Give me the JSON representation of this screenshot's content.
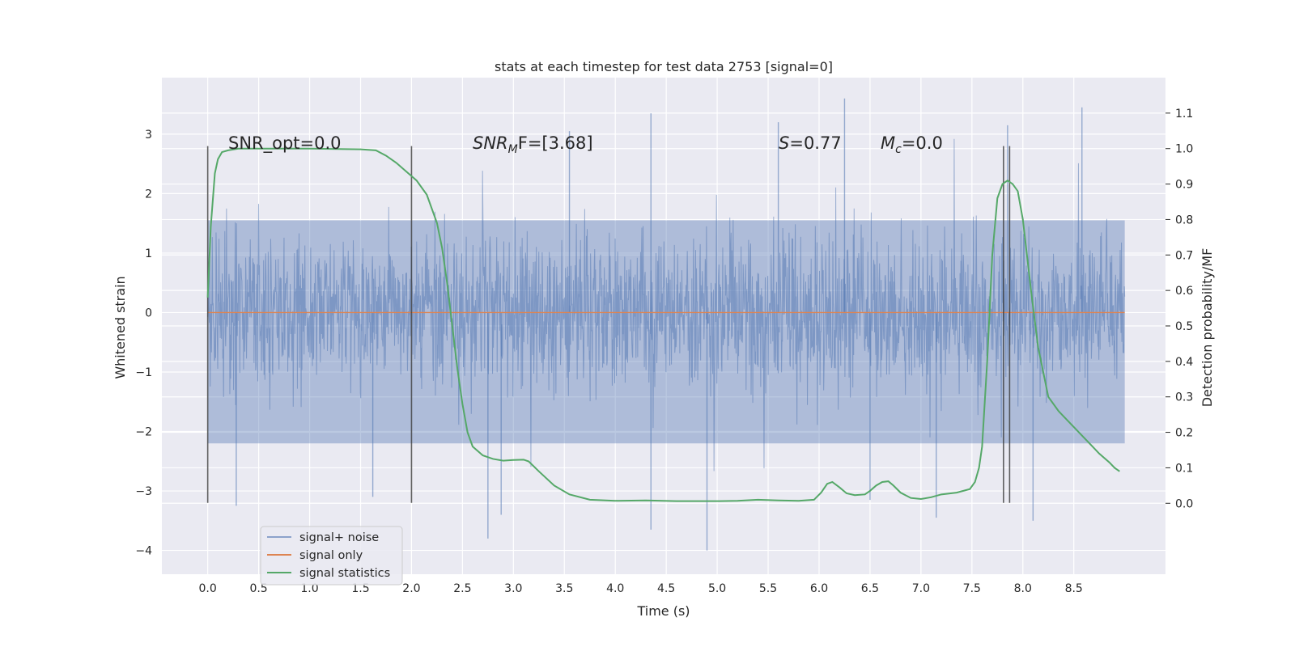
{
  "chart_data": {
    "type": "line",
    "title": "stats at each timestep for test data 2753 [signal=0]",
    "xlabel": "Time (s)",
    "ylabel_left": "Whitened strain",
    "ylabel_right": "Detection probability/MF",
    "xlim": [
      -0.45,
      9.4
    ],
    "ylim_left": [
      -4.4,
      3.95
    ],
    "ylim_right": [
      -0.2,
      1.2
    ],
    "x_ticks": [
      "0.0",
      "0.5",
      "1.0",
      "1.5",
      "2.0",
      "2.5",
      "3.0",
      "3.5",
      "4.0",
      "4.5",
      "5.0",
      "5.5",
      "6.0",
      "6.5",
      "7.0",
      "7.5",
      "8.0",
      "8.5"
    ],
    "y_ticks_left": [
      "3",
      "2",
      "1",
      "0",
      "−1",
      "−2",
      "−3",
      "−4"
    ],
    "y_ticks_right": [
      "1.1",
      "1.0",
      "0.9",
      "0.8",
      "0.7",
      "0.6",
      "0.5",
      "0.4",
      "0.3",
      "0.2",
      "0.1",
      "0.0"
    ],
    "grid": true,
    "annotations": {
      "snr_opt": "SNR_opt=0.0",
      "snr_mf_base": "SNR",
      "snr_mf_sub": "M",
      "snr_mf_rest": "F=[3.68]",
      "s_base": "S",
      "s_rest": "=0.77",
      "mc_base": "M",
      "mc_sub": "c",
      "mc_rest": "=0.0"
    },
    "vertical_lines": [
      {
        "x": 0.0,
        "ymin": -3.2,
        "ymax": 2.8
      },
      {
        "x": 2.0,
        "ymin": -3.2,
        "ymax": 2.8
      },
      {
        "x": 7.81,
        "ymin": -3.2,
        "ymax": 2.8
      },
      {
        "x": 7.87,
        "ymin": -3.2,
        "ymax": 2.8
      }
    ],
    "series": [
      {
        "name": "signal+ noise",
        "color": "#4c72b0",
        "kind": "noise",
        "x_range": [
          0.0,
          9.0
        ],
        "core_range": [
          -2.2,
          1.55
        ],
        "extremes": [
          {
            "x": 0.28,
            "y": -3.25
          },
          {
            "x": 2.75,
            "y": -3.8
          },
          {
            "x": 2.88,
            "y": -3.4
          },
          {
            "x": 4.35,
            "y": 3.35
          },
          {
            "x": 4.35,
            "y": -3.65
          },
          {
            "x": 4.9,
            "y": -4.0
          },
          {
            "x": 5.6,
            "y": 3.2
          },
          {
            "x": 6.25,
            "y": 3.6
          },
          {
            "x": 7.15,
            "y": -3.45
          },
          {
            "x": 8.1,
            "y": -3.5
          },
          {
            "x": 8.58,
            "y": 3.45
          },
          {
            "x": 7.85,
            "y": 3.15
          },
          {
            "x": 3.55,
            "y": 3.05
          },
          {
            "x": 1.62,
            "y": -3.1
          },
          {
            "x": 6.5,
            "y": -3.15
          }
        ]
      },
      {
        "name": "signal only",
        "color": "#dd8452",
        "x": [
          0.0,
          9.0
        ],
        "y": [
          0.0,
          0.0
        ]
      },
      {
        "name": "signal statistics",
        "color": "#55a868",
        "axis": "right",
        "x": [
          0.0,
          0.03,
          0.07,
          0.1,
          0.14,
          0.2,
          0.3,
          0.5,
          1.0,
          1.5,
          1.65,
          1.75,
          1.85,
          1.95,
          2.05,
          2.15,
          2.25,
          2.3,
          2.35,
          2.4,
          2.45,
          2.5,
          2.55,
          2.6,
          2.7,
          2.8,
          2.9,
          3.0,
          3.1,
          3.15,
          3.25,
          3.4,
          3.55,
          3.75,
          4.0,
          4.3,
          4.6,
          5.0,
          5.2,
          5.4,
          5.6,
          5.8,
          5.95,
          6.02,
          6.08,
          6.13,
          6.2,
          6.27,
          6.35,
          6.45,
          6.5,
          6.56,
          6.62,
          6.68,
          6.73,
          6.8,
          6.9,
          7.0,
          7.1,
          7.2,
          7.35,
          7.48,
          7.53,
          7.57,
          7.6,
          7.65,
          7.7,
          7.75,
          7.8,
          7.85,
          7.9,
          7.95,
          8.0,
          8.08,
          8.15,
          8.25,
          8.35,
          8.45,
          8.55,
          8.65,
          8.75,
          8.85,
          8.9,
          8.95
        ],
        "y": [
          0.58,
          0.78,
          0.93,
          0.97,
          0.99,
          0.995,
          1.0,
          1.0,
          1.0,
          0.998,
          0.995,
          0.98,
          0.96,
          0.935,
          0.91,
          0.87,
          0.79,
          0.72,
          0.62,
          0.5,
          0.38,
          0.28,
          0.2,
          0.16,
          0.135,
          0.125,
          0.12,
          0.122,
          0.123,
          0.118,
          0.09,
          0.05,
          0.025,
          0.01,
          0.007,
          0.008,
          0.006,
          0.006,
          0.007,
          0.01,
          0.008,
          0.007,
          0.01,
          0.03,
          0.055,
          0.06,
          0.045,
          0.028,
          0.023,
          0.025,
          0.035,
          0.05,
          0.06,
          0.062,
          0.05,
          0.03,
          0.015,
          0.012,
          0.017,
          0.025,
          0.03,
          0.04,
          0.06,
          0.1,
          0.16,
          0.4,
          0.7,
          0.86,
          0.9,
          0.91,
          0.9,
          0.88,
          0.8,
          0.6,
          0.44,
          0.3,
          0.26,
          0.23,
          0.2,
          0.17,
          0.14,
          0.115,
          0.1,
          0.09
        ]
      }
    ],
    "legend": [
      "signal+ noise",
      "signal only",
      "signal statistics"
    ],
    "legend_position": "lower-left"
  }
}
